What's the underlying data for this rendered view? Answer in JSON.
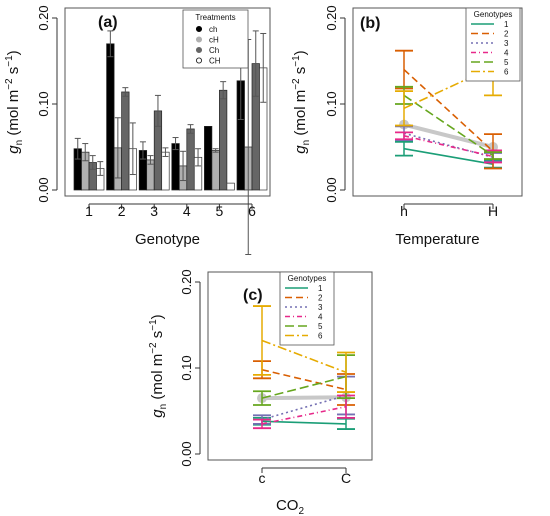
{
  "chart_data": [
    {
      "panel": "(a)",
      "type": "bar",
      "xlabel": "Genotype",
      "ylabel": {
        "main": "g",
        "sub": "n",
        "units": "(mol m",
        "exp1": "−2",
        "mid": " s",
        "exp2": "−1",
        "close": ")"
      },
      "ylim": [
        0,
        0.2
      ],
      "yticks": [
        "0.00",
        "0.10",
        "0.20"
      ],
      "ytick_values": [
        0,
        0.1,
        0.2
      ],
      "categories": [
        "1",
        "2",
        "3",
        "4",
        "5",
        "6"
      ],
      "legend": {
        "title": "Treatments",
        "placement": "top-right",
        "entries": [
          "ch",
          "cH",
          "Ch",
          "CH"
        ]
      },
      "series": [
        {
          "name": "ch",
          "color": "#000000",
          "marker": "filled",
          "values": [
            0.048,
            0.17,
            0.046,
            0.054,
            0.074,
            0.127
          ],
          "err": [
            0.012,
            0.015,
            0.01,
            0.007,
            0.0,
            0.045
          ]
        },
        {
          "name": "cH",
          "color": "#b0b0b0",
          "marker": "filled",
          "values": [
            0.044,
            0.049,
            0.035,
            0.028,
            0.046,
            0.05
          ],
          "err": [
            0.01,
            0.035,
            0.005,
            0.017,
            0.002,
            0.125
          ]
        },
        {
          "name": "Ch",
          "color": "#666666",
          "marker": "filled",
          "values": [
            0.032,
            0.114,
            0.092,
            0.071,
            0.116,
            0.147
          ],
          "err": [
            0.008,
            0.005,
            0.018,
            0.005,
            0.01,
            0.038
          ]
        },
        {
          "name": "CH",
          "color": "#ffffff",
          "marker": "open",
          "values": [
            0.025,
            0.048,
            0.044,
            0.038,
            0.008,
            0.142
          ],
          "err": [
            0.008,
            0.03,
            0.005,
            0.01,
            0.0,
            0.04
          ]
        }
      ]
    },
    {
      "panel": "(b)",
      "type": "line",
      "xlabel": "Temperature",
      "ylabel": {
        "main": "g",
        "sub": "n",
        "units": "(mol m",
        "exp1": "−2",
        "mid": " s",
        "exp2": "−1",
        "close": ")"
      },
      "ylim": [
        0,
        0.2
      ],
      "yticks": [
        "0.00",
        "0.10",
        "0.20"
      ],
      "ytick_values": [
        0,
        0.1,
        0.2
      ],
      "categories": [
        "h",
        "H"
      ],
      "legend": {
        "title": "Genotypes",
        "placement": "top-right",
        "entries": [
          "1",
          "2",
          "3",
          "4",
          "5",
          "6"
        ]
      },
      "mean_line": {
        "color": "#c8c8c8",
        "values": [
          0.076,
          0.05
        ]
      },
      "series": [
        {
          "name": "1",
          "color": "#1b9e77",
          "dash": "solid",
          "values": [
            0.048,
            0.03
          ],
          "err": [
            0.008,
            0.004
          ]
        },
        {
          "name": "2",
          "color": "#d95f02",
          "dash": "7,4",
          "values": [
            0.14,
            0.045
          ],
          "err": [
            0.022,
            0.02
          ]
        },
        {
          "name": "3",
          "color": "#7570b3",
          "dash": "2,3",
          "values": [
            0.066,
            0.038
          ],
          "err": [
            0.008,
            0.005
          ]
        },
        {
          "name": "4",
          "color": "#e7298a",
          "dash": "5,3,1,3",
          "values": [
            0.063,
            0.039
          ],
          "err": [
            0.004,
            0.007
          ]
        },
        {
          "name": "5",
          "color": "#66a61e",
          "dash": "9,4",
          "values": [
            0.11,
            0.04
          ],
          "err": [
            0.01,
            0.004
          ]
        },
        {
          "name": "6",
          "color": "#e6ab02",
          "dash": "9,3,2,3",
          "values": [
            0.095,
            0.143
          ],
          "err": [
            0.02,
            0.033
          ]
        }
      ]
    },
    {
      "panel": "(c)",
      "type": "line",
      "xlabel": {
        "main": "CO",
        "sub": "2"
      },
      "ylabel": {
        "main": "g",
        "sub": "n",
        "units": "(mol m",
        "exp1": "−2",
        "mid": " s",
        "exp2": "−1",
        "close": ")"
      },
      "ylim": [
        0,
        0.2
      ],
      "yticks": [
        "0.00",
        "0.10",
        "0.20"
      ],
      "ytick_values": [
        0,
        0.1,
        0.2
      ],
      "categories": [
        "c",
        "C"
      ],
      "legend": {
        "title": "Genotypes",
        "placement": "top-right",
        "entries": [
          "1",
          "2",
          "3",
          "4",
          "5",
          "6"
        ]
      },
      "mean_line": {
        "color": "#c8c8c8",
        "values": [
          0.065,
          0.066
        ]
      },
      "series": [
        {
          "name": "1",
          "color": "#1b9e77",
          "dash": "solid",
          "values": [
            0.038,
            0.035
          ],
          "err": [
            0.004,
            0.006
          ]
        },
        {
          "name": "2",
          "color": "#d95f02",
          "dash": "7,4",
          "values": [
            0.098,
            0.075
          ],
          "err": [
            0.01,
            0.018
          ]
        },
        {
          "name": "3",
          "color": "#7570b3",
          "dash": "2,3",
          "values": [
            0.04,
            0.068
          ],
          "err": [
            0.005,
            0.022
          ]
        },
        {
          "name": "4",
          "color": "#e7298a",
          "dash": "5,3,1,3",
          "values": [
            0.035,
            0.055
          ],
          "err": [
            0.005,
            0.013
          ]
        },
        {
          "name": "5",
          "color": "#66a61e",
          "dash": "9,4",
          "values": [
            0.065,
            0.09
          ],
          "err": [
            0.008,
            0.025
          ]
        },
        {
          "name": "6",
          "color": "#e6ab02",
          "dash": "9,3,2,3",
          "values": [
            0.132,
            0.095
          ],
          "err": [
            0.04,
            0.023
          ]
        }
      ]
    }
  ]
}
